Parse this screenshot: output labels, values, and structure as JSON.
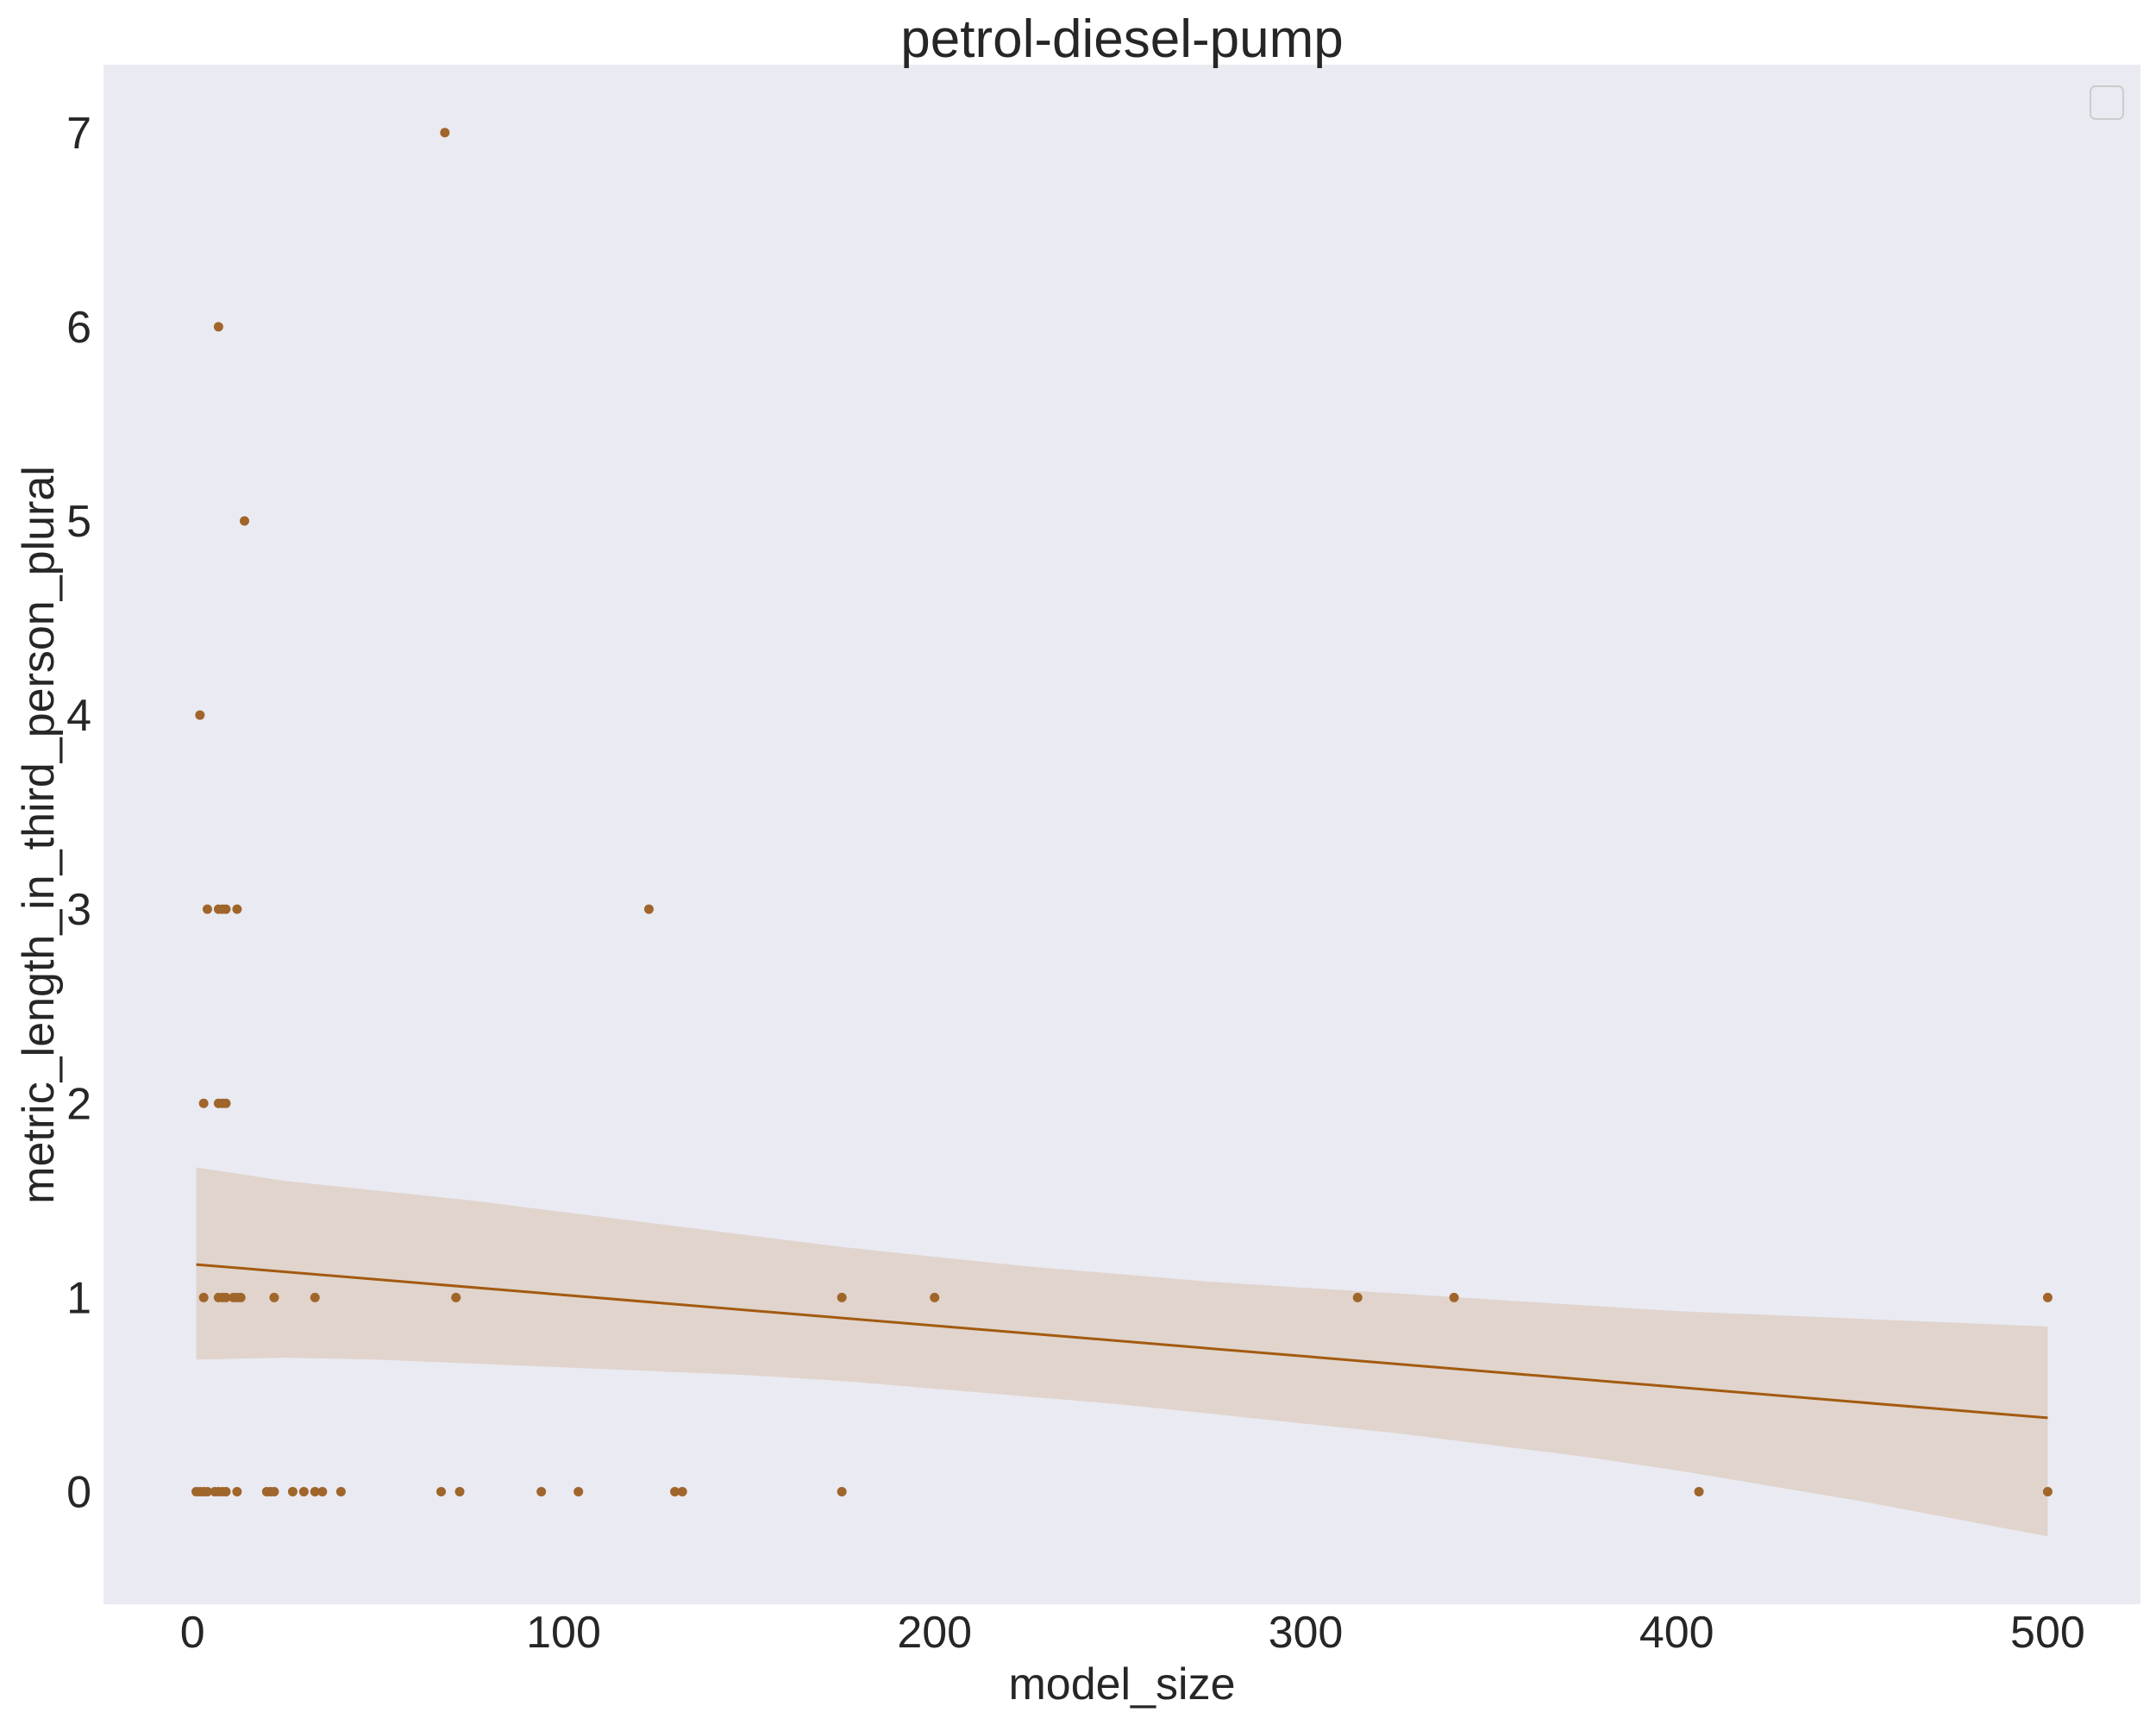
{
  "chart_data": {
    "type": "scatter",
    "title": "petrol-diesel-pump",
    "xlabel": "model_size",
    "ylabel": "metric_length_in_third_person_plural",
    "xlim": [
      -24,
      525
    ],
    "ylim": [
      -0.58,
      7.35
    ],
    "xticks": [
      0,
      100,
      200,
      300,
      400,
      500
    ],
    "yticks": [
      0,
      1,
      2,
      3,
      4,
      5,
      6,
      7
    ],
    "grid": false,
    "legend": "top-right (empty)",
    "colors": {
      "background": "#eaeaf2",
      "points": "#a0652a",
      "line": "#a35a0f",
      "band": "#e0d4cd"
    },
    "points": [
      {
        "x": 68,
        "y": 7
      },
      {
        "x": 7,
        "y": 6
      },
      {
        "x": 14,
        "y": 5
      },
      {
        "x": 2,
        "y": 4
      },
      {
        "x": 4,
        "y": 3
      },
      {
        "x": 7,
        "y": 3
      },
      {
        "x": 8,
        "y": 3
      },
      {
        "x": 9,
        "y": 3
      },
      {
        "x": 12,
        "y": 3
      },
      {
        "x": 123,
        "y": 3
      },
      {
        "x": 3,
        "y": 2
      },
      {
        "x": 7,
        "y": 2
      },
      {
        "x": 8,
        "y": 2
      },
      {
        "x": 9,
        "y": 2
      },
      {
        "x": 3,
        "y": 1
      },
      {
        "x": 7,
        "y": 1
      },
      {
        "x": 8,
        "y": 1
      },
      {
        "x": 9,
        "y": 1
      },
      {
        "x": 11,
        "y": 1
      },
      {
        "x": 12,
        "y": 1
      },
      {
        "x": 13,
        "y": 1
      },
      {
        "x": 22,
        "y": 1
      },
      {
        "x": 33,
        "y": 1
      },
      {
        "x": 71,
        "y": 1
      },
      {
        "x": 175,
        "y": 1
      },
      {
        "x": 200,
        "y": 1
      },
      {
        "x": 314,
        "y": 1
      },
      {
        "x": 340,
        "y": 1
      },
      {
        "x": 500,
        "y": 1
      },
      {
        "x": 1,
        "y": 0
      },
      {
        "x": 2,
        "y": 0
      },
      {
        "x": 3,
        "y": 0
      },
      {
        "x": 4,
        "y": 0
      },
      {
        "x": 6,
        "y": 0
      },
      {
        "x": 7,
        "y": 0
      },
      {
        "x": 8,
        "y": 0
      },
      {
        "x": 9,
        "y": 0
      },
      {
        "x": 12,
        "y": 0
      },
      {
        "x": 20,
        "y": 0
      },
      {
        "x": 21,
        "y": 0
      },
      {
        "x": 22,
        "y": 0
      },
      {
        "x": 27,
        "y": 0
      },
      {
        "x": 30,
        "y": 0
      },
      {
        "x": 33,
        "y": 0
      },
      {
        "x": 35,
        "y": 0
      },
      {
        "x": 40,
        "y": 0
      },
      {
        "x": 67,
        "y": 0
      },
      {
        "x": 72,
        "y": 0
      },
      {
        "x": 94,
        "y": 0
      },
      {
        "x": 104,
        "y": 0
      },
      {
        "x": 130,
        "y": 0
      },
      {
        "x": 132,
        "y": 0
      },
      {
        "x": 175,
        "y": 0
      },
      {
        "x": 406,
        "y": 0
      },
      {
        "x": 500,
        "y": 0
      }
    ],
    "regression": {
      "x": [
        1,
        500
      ],
      "y": [
        1.17,
        0.38
      ]
    },
    "confidence_band": {
      "x": [
        1,
        25,
        50,
        75,
        100,
        125,
        150,
        175,
        200,
        225,
        250,
        275,
        300,
        325,
        350,
        375,
        400,
        425,
        450,
        475,
        500
      ],
      "upper": [
        1.67,
        1.6,
        1.55,
        1.5,
        1.44,
        1.38,
        1.32,
        1.26,
        1.21,
        1.16,
        1.12,
        1.08,
        1.05,
        1.02,
        0.99,
        0.96,
        0.93,
        0.91,
        0.89,
        0.87,
        0.85
      ],
      "lower": [
        0.68,
        0.69,
        0.68,
        0.66,
        0.64,
        0.62,
        0.6,
        0.57,
        0.53,
        0.49,
        0.45,
        0.4,
        0.35,
        0.3,
        0.24,
        0.18,
        0.11,
        0.03,
        -0.05,
        -0.14,
        -0.23
      ]
    }
  }
}
